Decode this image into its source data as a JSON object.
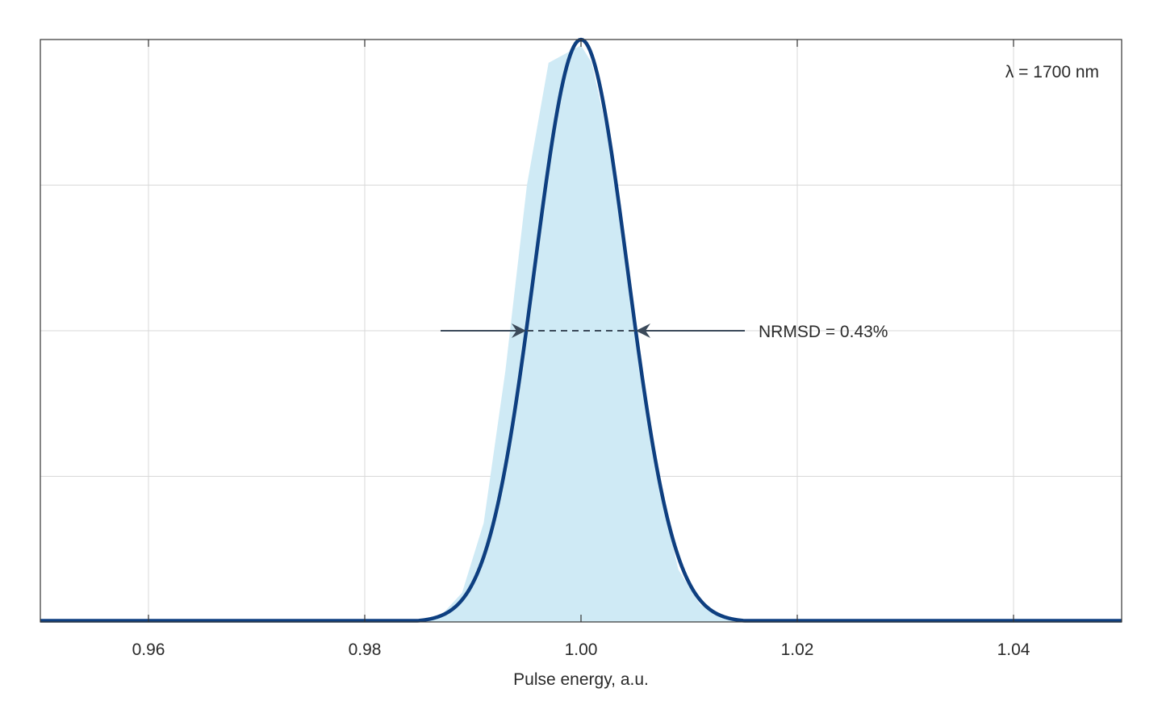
{
  "chart_data": {
    "type": "area",
    "title": "",
    "xlabel": "Pulse energy, a.u.",
    "ylabel": "",
    "xlim": [
      0.95,
      1.05
    ],
    "ylim": [
      0,
      1
    ],
    "x_ticks": [
      0.96,
      0.98,
      1.0,
      1.02,
      1.04
    ],
    "x_tick_labels": [
      "0.96",
      "0.98",
      "1.00",
      "1.02",
      "1.04"
    ],
    "y_gridlines": [
      0.25,
      0.5,
      0.75
    ],
    "grid": true,
    "y_tick_labels_shown": false,
    "series": [
      {
        "kind": "histogram",
        "color": "#cfeaf5",
        "x": [
          0.985,
          0.987,
          0.989,
          0.991,
          0.993,
          0.995,
          0.997,
          0.999,
          1.0,
          1.001,
          1.003,
          1.005,
          1.007,
          1.009,
          1.011,
          1.013,
          1.015
        ],
        "values": [
          0.0,
          0.01,
          0.05,
          0.17,
          0.43,
          0.75,
          0.96,
          0.98,
          0.99,
          0.96,
          0.79,
          0.49,
          0.25,
          0.09,
          0.03,
          0.01,
          0.0
        ]
      },
      {
        "kind": "gaussian-fit",
        "color": "#0e3f80",
        "mean": 1.0,
        "sigma": 0.0043,
        "peak": 1.0
      }
    ],
    "annotations": [
      {
        "text": "λ = 1700 nm",
        "position": "top-right"
      },
      {
        "text": "NRMSD = 0.43%",
        "level": 0.5,
        "left_x": 0.995,
        "right_x": 1.005
      }
    ]
  }
}
